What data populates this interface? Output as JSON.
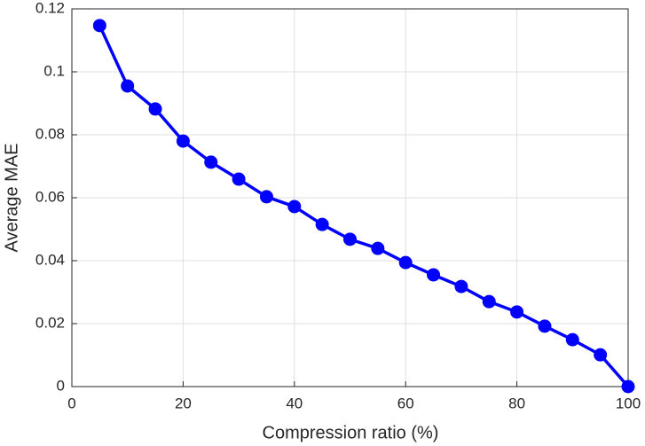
{
  "chart_data": {
    "type": "line",
    "xlabel": "Compression ratio (%)",
    "ylabel": "Average MAE",
    "x": [
      5,
      10,
      15,
      20,
      25,
      30,
      35,
      40,
      45,
      50,
      55,
      60,
      65,
      70,
      75,
      80,
      85,
      90,
      95,
      100
    ],
    "series": [
      {
        "color": "#0000ff",
        "values": [
          0.1147,
          0.0955,
          0.0882,
          0.078,
          0.0713,
          0.0659,
          0.0603,
          0.0572,
          0.0515,
          0.0468,
          0.0439,
          0.0394,
          0.0355,
          0.0318,
          0.027,
          0.0237,
          0.0192,
          0.0149,
          0.0101,
          0
        ]
      }
    ],
    "xlim": [
      0,
      100
    ],
    "xticks": [
      0,
      20,
      40,
      60,
      80,
      100
    ],
    "ylim": [
      0,
      0.12
    ],
    "yticks": [
      0,
      0.02,
      0.04,
      0.06,
      0.08,
      0.1,
      0.12
    ],
    "grid": true
  }
}
